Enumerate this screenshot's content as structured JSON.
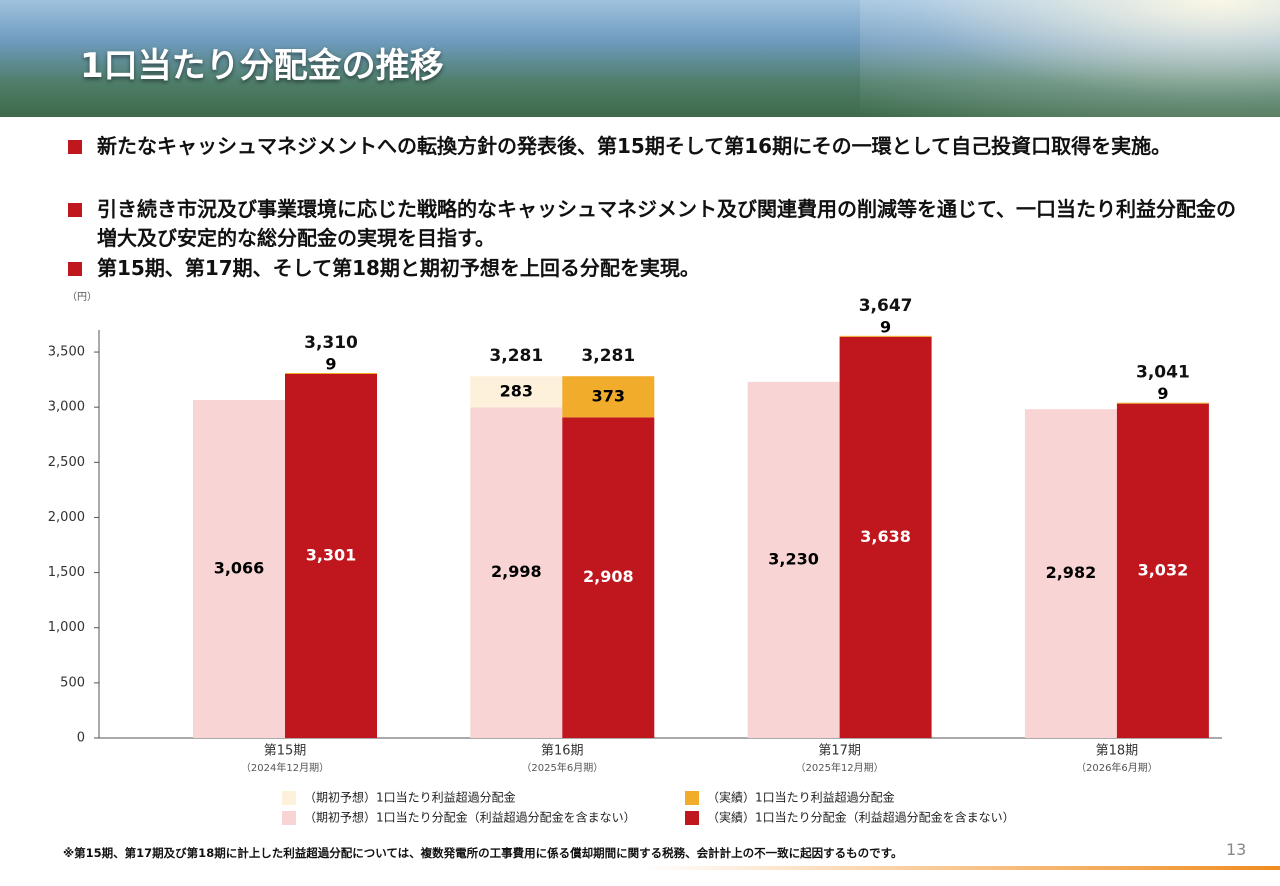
{
  "header": {
    "title": "1口当たり分配金の推移"
  },
  "bullets": [
    "新たなキャッシュマネジメントへの転換方針の発表後、第15期そして第16期にその一環として自己投資口取得を実施。",
    "引き続き市況及び事業環境に応じた戦略的なキャッシュマネジメント及び関連費用の削減等を通じて、一口当たり利益分配金の増大及び安定的な総分配金の実現を目指す。",
    "第15期、第17期、そして第18期と期初予想を上回る分配を実現。"
  ],
  "chart_data": {
    "type": "stacked_bar",
    "y_label": "（円）",
    "categories": [
      "第15期",
      "第16期",
      "第17期",
      "第18期"
    ],
    "category_sublabels": [
      "（2024年12月期）",
      "（2025年6月期）",
      "（2025年12月期）",
      "（2026年6月期）"
    ],
    "ylim": [
      0,
      3700
    ],
    "yticks": [
      0,
      500,
      {
        "value": 1000,
        "label": "1,000"
      },
      {
        "value": 1500,
        "label": "1,500"
      },
      {
        "value": 2000,
        "label": "2,000"
      },
      {
        "value": 2500,
        "label": "2,500"
      },
      {
        "value": 3000,
        "label": "3,000"
      },
      {
        "value": 3500,
        "label": "3,500"
      }
    ],
    "series": [
      {
        "name": "（期初予想）1口当たり分配金（利益超過分配金を含まない）",
        "color": "#f8d5d4",
        "stack": "forecast",
        "label_color": "#000000",
        "values": [
          3066,
          2998,
          3230,
          2982
        ],
        "value_labels": [
          "3,066",
          "2,998",
          "3,230",
          "2,982"
        ]
      },
      {
        "name": "（期初予想）1口当たり利益超過分配金",
        "color": "#fdf1dc",
        "stack": "forecast",
        "label_color": "#000000",
        "values": [
          null,
          283,
          null,
          null
        ]
      },
      {
        "name": "（実績）1口当たり分配金（利益超過分配金を含まない）",
        "color": "#c0161d",
        "stack": "actual",
        "label_color": "#ffffff",
        "values": [
          3301,
          2908,
          3638,
          3032
        ],
        "value_labels": [
          "3,301",
          "2,908",
          "3,638",
          "3,032"
        ]
      },
      {
        "name": "（実績）1口当たり利益超過分配金",
        "color": "#f0ac2a",
        "stack": "actual",
        "label_color": "#000000",
        "values": [
          9,
          373,
          9,
          9
        ]
      }
    ],
    "totals": [
      {
        "stack": "forecast",
        "values": [
          null,
          3281,
          null,
          null
        ],
        "value_labels": [
          null,
          "3,281",
          null,
          null
        ]
      },
      {
        "stack": "actual",
        "values": [
          3310,
          3281,
          3647,
          3041
        ],
        "value_labels": [
          "3,310",
          "3,281",
          "3,647",
          "3,041"
        ]
      }
    ]
  },
  "footnote": "※第15期、第17期及び第18期に計上した利益超過分配については、複数発電所の工事費用に係る償却期間に関する税務、会計計上の不一致に起因するものです。",
  "page_number": "13"
}
